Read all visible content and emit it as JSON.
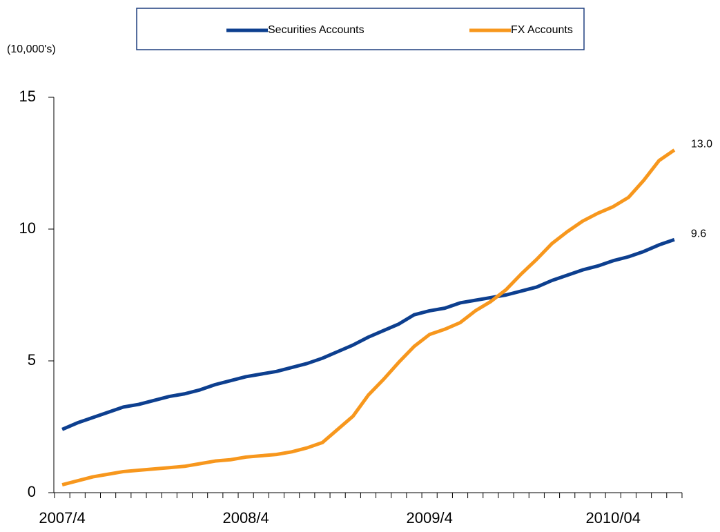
{
  "chart_data": {
    "type": "line",
    "y_label": "(10,000's)",
    "categories": [
      "2007/4",
      null,
      null,
      null,
      null,
      null,
      null,
      null,
      null,
      null,
      null,
      null,
      "2008/4",
      null,
      null,
      null,
      null,
      null,
      null,
      null,
      null,
      null,
      null,
      null,
      "2009/4",
      null,
      null,
      null,
      null,
      null,
      null,
      null,
      null,
      null,
      null,
      null,
      "2010/04",
      null,
      null,
      null,
      null
    ],
    "series": [
      {
        "name": "Securities Accounts",
        "color": "#0d3f8f",
        "values": [
          2.4,
          2.65,
          2.85,
          3.05,
          3.25,
          3.35,
          3.5,
          3.65,
          3.75,
          3.9,
          4.1,
          4.25,
          4.4,
          4.5,
          4.6,
          4.75,
          4.9,
          5.1,
          5.35,
          5.6,
          5.9,
          6.15,
          6.4,
          6.75,
          6.9,
          7.0,
          7.2,
          7.3,
          7.4,
          7.5,
          7.65,
          7.8,
          8.05,
          8.25,
          8.45,
          8.6,
          8.8,
          8.95,
          9.15,
          9.4,
          9.6
        ],
        "value_labels": [
          null,
          null,
          null,
          null,
          null,
          null,
          null,
          null,
          null,
          null,
          null,
          null,
          null,
          null,
          null,
          null,
          null,
          null,
          null,
          null,
          null,
          null,
          null,
          null,
          null,
          null,
          null,
          null,
          null,
          null,
          null,
          null,
          null,
          null,
          null,
          null,
          null,
          null,
          null,
          null,
          "9.6"
        ]
      },
      {
        "name": "FX Accounts",
        "color": "#f7971d",
        "values": [
          0.3,
          0.45,
          0.6,
          0.7,
          0.8,
          0.85,
          0.9,
          0.95,
          1.0,
          1.1,
          1.2,
          1.25,
          1.35,
          1.4,
          1.45,
          1.55,
          1.7,
          1.9,
          2.4,
          2.9,
          3.7,
          4.3,
          4.95,
          5.55,
          6.0,
          6.2,
          6.45,
          6.9,
          7.25,
          7.7,
          8.3,
          8.85,
          9.45,
          9.9,
          10.3,
          10.6,
          10.85,
          11.2,
          11.85,
          12.6,
          13.0
        ],
        "value_labels": [
          null,
          null,
          null,
          null,
          null,
          null,
          null,
          null,
          null,
          null,
          null,
          null,
          null,
          null,
          null,
          null,
          null,
          null,
          null,
          null,
          null,
          null,
          null,
          null,
          null,
          null,
          null,
          null,
          null,
          null,
          null,
          null,
          null,
          null,
          null,
          null,
          null,
          null,
          null,
          null,
          "13.0"
        ]
      }
    ],
    "ylim": [
      0,
      15
    ],
    "yticks": [
      0,
      5,
      10,
      15
    ],
    "grid": false,
    "legend": "top"
  }
}
